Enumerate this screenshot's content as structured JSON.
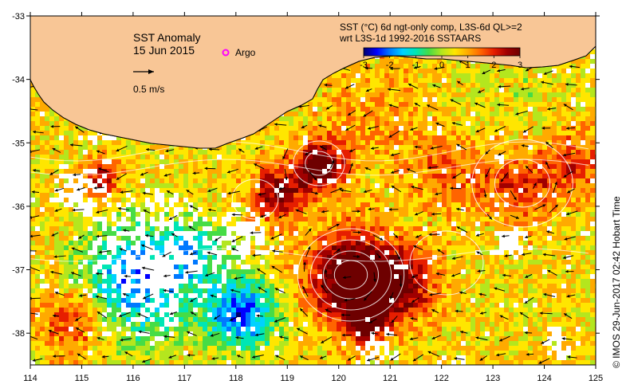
{
  "title": {
    "line1": "SST Anomaly",
    "date": "15 Jun 2015"
  },
  "legend": {
    "argo_label": "Argo",
    "argo_color": "#ff00ff",
    "vector_label": "0.5 m/s",
    "product_line1": "SST (°C) 6d ngt-only comp, L3S-6d QL>=2",
    "product_line2": "wrt L3S-1d 1992-2016 SSTAARS",
    "colorbar": {
      "min": -3,
      "max": 3,
      "tick_labels": [
        "-3",
        "-2",
        "-1",
        "0",
        "1",
        "2",
        "3"
      ],
      "colors": [
        "#00006e",
        "#0000ff",
        "#0078ff",
        "#00d2ff",
        "#00e6b4",
        "#46dc46",
        "#b4e61e",
        "#ffe600",
        "#ffaa00",
        "#ff6400",
        "#e61e00",
        "#a00000",
        "#6e0000"
      ]
    }
  },
  "axes": {
    "lon_min": 114,
    "lon_max": 125,
    "lat_min": -38.5,
    "lat_max": -33,
    "lon_ticks": [
      "114",
      "115",
      "116",
      "117",
      "118",
      "119",
      "120",
      "121",
      "122",
      "123",
      "124",
      "125"
    ],
    "lat_ticks": [
      "-33",
      "-34",
      "-35",
      "-36",
      "-37",
      "-38"
    ]
  },
  "colors": {
    "land": "#f8c696",
    "no_data": "#ffffff",
    "contour": "#ffffff",
    "vector": "#000000"
  },
  "credit": "©  IMOS 29-Jun-2017 02:42 Hobart Time"
}
